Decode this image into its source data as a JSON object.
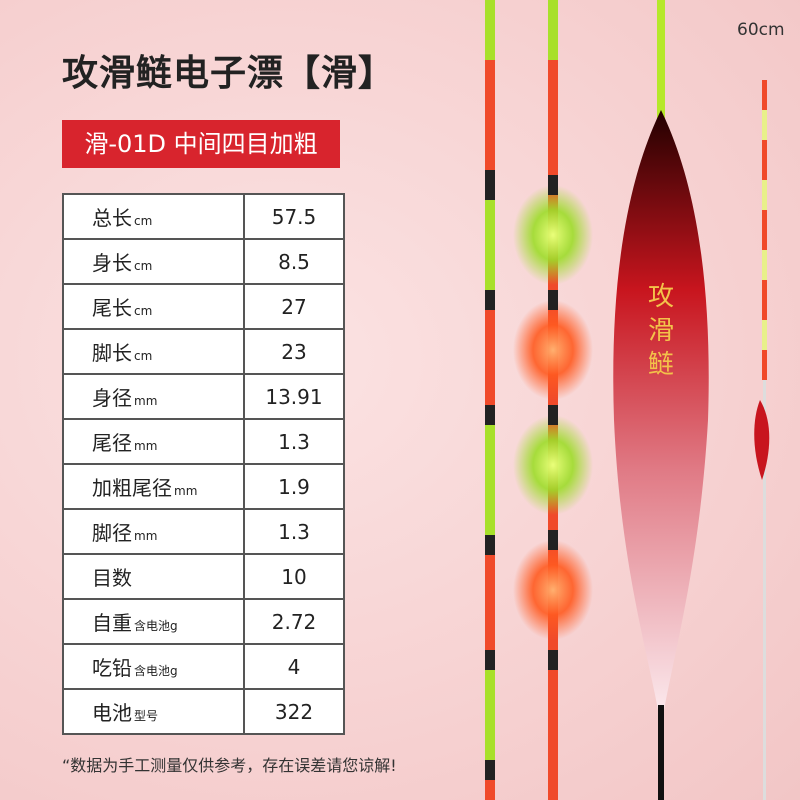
{
  "header": {
    "title": "攻滑鲢电子漂【滑】",
    "badge": "滑-01D 中间四目加粗",
    "scale_label": "60cm",
    "float_text": "攻滑鲢"
  },
  "table": {
    "rows": [
      {
        "label": "总长",
        "unit": "cm",
        "value": "57.5"
      },
      {
        "label": "身长",
        "unit": "cm",
        "value": "8.5"
      },
      {
        "label": "尾长",
        "unit": "cm",
        "value": "27"
      },
      {
        "label": "脚长",
        "unit": "cm",
        "value": "23"
      },
      {
        "label": "身径",
        "unit": "mm",
        "value": "13.91"
      },
      {
        "label": "尾径",
        "unit": "mm",
        "value": "1.3"
      },
      {
        "label": "加粗尾径",
        "unit": "mm",
        "value": "1.9"
      },
      {
        "label": "脚径",
        "unit": "mm",
        "value": "1.3"
      },
      {
        "label": "目数",
        "unit": "",
        "value": "10"
      },
      {
        "label": "自重",
        "unit": "含电池g",
        "value": "2.72"
      },
      {
        "label": "吃铅",
        "unit": "含电池g",
        "value": "4"
      },
      {
        "label": "电池",
        "unit": "型号",
        "value": "322"
      }
    ]
  },
  "footnote": "“数据为手工测量仅供参考，存在误差请您谅解!"
}
